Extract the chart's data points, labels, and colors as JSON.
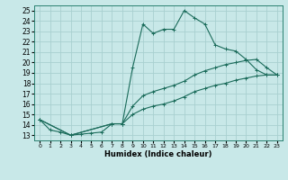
{
  "xlabel": "Humidex (Indice chaleur)",
  "bg_color": "#c8e8e8",
  "grid_color": "#a8d0d0",
  "line_color": "#1a6b5a",
  "xlim": [
    -0.5,
    23.5
  ],
  "ylim": [
    12.5,
    25.5
  ],
  "yticks": [
    13,
    14,
    15,
    16,
    17,
    18,
    19,
    20,
    21,
    22,
    23,
    24,
    25
  ],
  "xticks": [
    0,
    1,
    2,
    3,
    4,
    5,
    6,
    7,
    8,
    9,
    10,
    11,
    12,
    13,
    14,
    15,
    16,
    17,
    18,
    19,
    20,
    21,
    22,
    23
  ],
  "line1_x": [
    0,
    1,
    2,
    3,
    4,
    5,
    6,
    7,
    8,
    9,
    10,
    11,
    12,
    13,
    14,
    15,
    16,
    17,
    18,
    19,
    20,
    21,
    22,
    23
  ],
  "line1_y": [
    14.5,
    13.5,
    13.3,
    13.0,
    13.1,
    13.2,
    13.3,
    14.1,
    14.1,
    19.5,
    23.7,
    22.8,
    23.2,
    23.2,
    25.0,
    24.3,
    23.7,
    21.7,
    21.3,
    21.1,
    20.3,
    19.3,
    18.8,
    18.8
  ],
  "line2_x": [
    0,
    3,
    7,
    8,
    9,
    10,
    11,
    12,
    13,
    14,
    15,
    16,
    17,
    18,
    19,
    20,
    21,
    22,
    23
  ],
  "line2_y": [
    14.5,
    13.0,
    14.1,
    14.1,
    15.8,
    16.8,
    17.2,
    17.5,
    17.8,
    18.2,
    18.8,
    19.2,
    19.5,
    19.8,
    20.0,
    20.2,
    20.3,
    19.5,
    18.8
  ],
  "line3_x": [
    0,
    3,
    7,
    8,
    9,
    10,
    11,
    12,
    13,
    14,
    15,
    16,
    17,
    18,
    19,
    20,
    21,
    22,
    23
  ],
  "line3_y": [
    14.5,
    13.0,
    14.1,
    14.1,
    15.0,
    15.5,
    15.8,
    16.0,
    16.3,
    16.7,
    17.2,
    17.5,
    17.8,
    18.0,
    18.3,
    18.5,
    18.7,
    18.8,
    18.8
  ]
}
